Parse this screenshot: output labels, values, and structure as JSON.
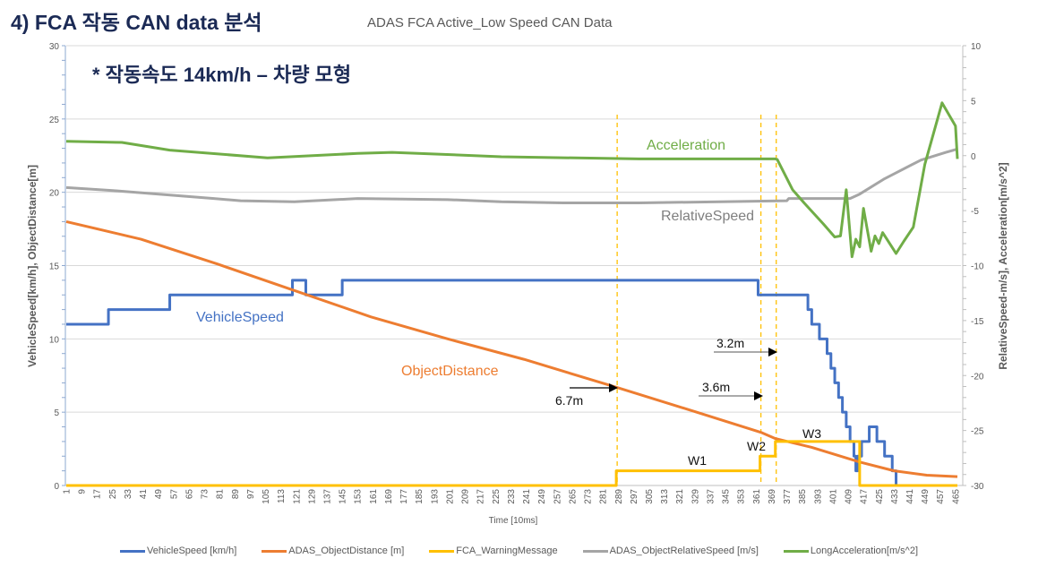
{
  "heading": "4) FCA 작동 CAN data 분석",
  "subheading": "* 작동속도 14km/h – 차량 모형",
  "chart_data": {
    "type": "line",
    "title": "ADAS FCA Active_Low Speed CAN Data",
    "xlabel": "Time [10ms]",
    "ylabel_left": "VehicleSpeed[km/h], ObjectDistance[m]",
    "ylabel_right": "RelativeSpeed-m/s], Acceleration[m/s^2]",
    "xlim": [
      1,
      466
    ],
    "ylim_left": [
      0,
      30
    ],
    "ylim_right": [
      -30,
      10
    ],
    "yticks_left": [
      0,
      5,
      10,
      15,
      20,
      25,
      30
    ],
    "yticks_right": [
      -30,
      -25,
      -20,
      -15,
      -10,
      -5,
      0,
      5,
      10
    ],
    "xtick_start": 1,
    "xtick_step": 8,
    "xtick_end": 465,
    "grid": true,
    "legend_position": "bottom",
    "series": [
      {
        "name": "VehicleSpeed [km/h]",
        "axis": "left",
        "color": "#4472C4",
        "step": true,
        "x": [
          1,
          23,
          55,
          119,
          126,
          145,
          362,
          388,
          390,
          392,
          394,
          396,
          398,
          400,
          402,
          404,
          406,
          408,
          410,
          412,
          413,
          414,
          416,
          418,
          420,
          422,
          424,
          426,
          428,
          430,
          432,
          434
        ],
        "values": [
          11,
          12,
          13,
          14,
          13,
          14,
          13,
          12,
          11,
          11,
          10,
          10,
          9,
          8,
          7,
          6,
          5,
          4,
          3,
          2,
          1,
          2,
          3,
          3,
          4,
          4,
          3,
          3,
          2,
          2,
          1,
          0
        ]
      },
      {
        "name": "ADAS_ObjectDistance [m]",
        "axis": "left",
        "color": "#ED7D31",
        "step": false,
        "x": [
          1,
          40,
          80,
          120,
          160,
          200,
          240,
          288,
          330,
          364,
          371,
          390,
          415,
          433,
          450,
          466
        ],
        "values": [
          18.0,
          16.8,
          15.1,
          13.3,
          11.5,
          10.0,
          8.6,
          6.7,
          5.0,
          3.6,
          3.2,
          2.6,
          1.6,
          1.0,
          0.7,
          0.6
        ]
      },
      {
        "name": "FCA_WarningMessage",
        "axis": "left",
        "color": "#FFC000",
        "step": true,
        "x": [
          1,
          288,
          363,
          371,
          415,
          466
        ],
        "values": [
          0,
          1,
          2,
          3,
          0,
          0
        ]
      },
      {
        "name": "ADAS_ObjectRelativeSpeed [m/s]",
        "axis": "right",
        "color": "#A5A5A5",
        "step": false,
        "x": [
          1,
          27,
          78,
          92,
          120,
          153,
          200,
          228,
          260,
          300,
          377,
          378,
          410,
          415,
          428,
          447,
          460,
          466
        ],
        "values": [
          -2.9,
          -3.2,
          -3.9,
          -4.1,
          -4.2,
          -3.9,
          -4.0,
          -4.2,
          -4.3,
          -4.3,
          -4.1,
          -3.9,
          -3.9,
          -3.5,
          -2.1,
          -0.4,
          0.3,
          0.6
        ]
      },
      {
        "name": "LongAcceleration[m/s^2]",
        "axis": "right",
        "color": "#70AD47",
        "step": false,
        "x": [
          1,
          30,
          55,
          106,
          153,
          171,
          228,
          300,
          371,
          372,
          380,
          386,
          396,
          402,
          405,
          408,
          411,
          413,
          415,
          417,
          421,
          423,
          425,
          427,
          434,
          438,
          443,
          449,
          458,
          465,
          466
        ],
        "values": [
          1.3,
          1.2,
          0.5,
          -0.2,
          0.2,
          0.3,
          -0.1,
          -0.3,
          -0.3,
          -0.35,
          -3.1,
          -4.3,
          -6.2,
          -7.4,
          -7.3,
          -3.1,
          -9.2,
          -7.6,
          -8.3,
          -4.8,
          -8.7,
          -7.3,
          -8.0,
          -7.0,
          -8.9,
          -7.8,
          -6.5,
          -0.8,
          4.8,
          2.7,
          -0.3
        ]
      }
    ],
    "series_labels": [
      "Acceleration",
      "RelativeSpeed",
      "VehicleSpeed",
      "ObjectDistance"
    ],
    "event_lines_x": [
      288,
      363,
      371
    ],
    "annotations": {
      "d67": "6.7m",
      "d36": "3.6m",
      "d32": "3.2m",
      "w1": "W1",
      "w2": "W2",
      "w3": "W3"
    }
  }
}
